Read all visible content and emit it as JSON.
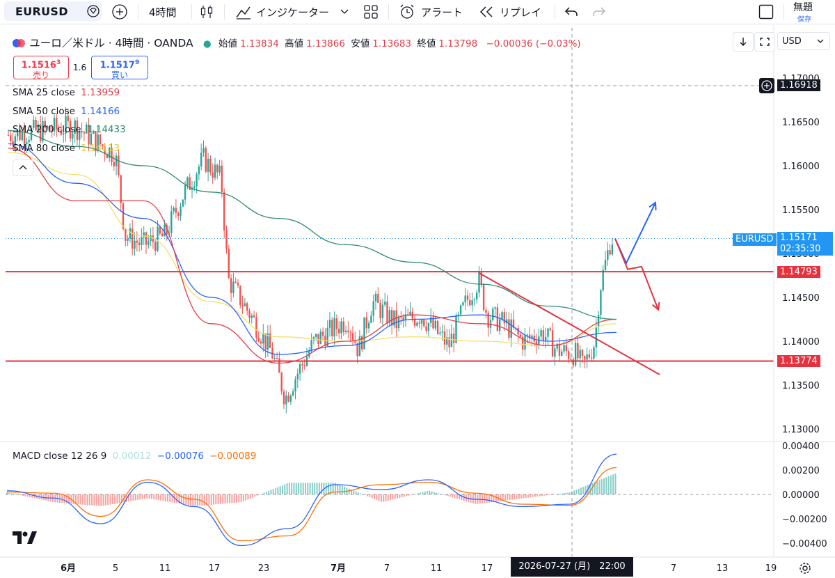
{
  "toolbar": {
    "symbol": "EURUSD",
    "interval": "4時間",
    "indicators": "インジケーター",
    "alert": "アラート",
    "replay": "リプレイ",
    "layout_name": "無題",
    "save": "保存"
  },
  "header": {
    "title": "ユーロ／米ドル · 4時間 · OANDA",
    "o_label": "始値",
    "o_val": "1.13834",
    "h_label": "高値",
    "h_val": "1.13866",
    "l_label": "安値",
    "l_val": "1.13683",
    "c_label": "終値",
    "c_val": "1.13798",
    "chg": "−0.00036 (−0.03%)",
    "currency": "USD"
  },
  "trade": {
    "sell_price_main": "1.1516",
    "sell_price_sup": "3",
    "sell_label": "売り",
    "spread": "1.6",
    "buy_price_main": "1.1517",
    "buy_price_sup": "9",
    "buy_label": "買い"
  },
  "indicators": [
    {
      "name": "SMA 25 close",
      "value": "1.13959",
      "color": "#e53b45"
    },
    {
      "name": "SMA 50 close",
      "value": "1.14166",
      "color": "#2962ff"
    },
    {
      "name": "SMA 200 close",
      "value": "1.14433",
      "color": "#2e8b6e"
    },
    {
      "name": "SMA 80 close",
      "value": "1.14113",
      "color": "#f5e06a"
    }
  ],
  "macd": {
    "label": "MACD close 12 26 9",
    "hist": "0.00012",
    "macd": "−0.00076",
    "signal": "−0.00089",
    "ticks": [
      "0.00400",
      "0.00200",
      "0.00000",
      "−0.00200",
      "−0.00400"
    ]
  },
  "price_axis": {
    "ticks": [
      "1.17000",
      "1.16500",
      "1.16000",
      "1.15500",
      "1.15000",
      "1.14500",
      "1.14000",
      "1.13500",
      "1.13000"
    ],
    "crosshair_price": "1.16918",
    "symbol_tag": "EURUSD",
    "last_price": "1.15171",
    "countdown": "02:35:30",
    "resistance": "1.14793",
    "support": "1.13774"
  },
  "time_axis": {
    "ticks": [
      {
        "label": "6月",
        "bold": true
      },
      {
        "label": "5",
        "bold": false
      },
      {
        "label": "11",
        "bold": false
      },
      {
        "label": "17",
        "bold": false
      },
      {
        "label": "23",
        "bold": false
      },
      {
        "label": "7月",
        "bold": true
      },
      {
        "label": "7",
        "bold": false
      },
      {
        "label": "11",
        "bold": false
      },
      {
        "label": "17",
        "bold": false
      },
      {
        "label": "7",
        "bold": false
      },
      {
        "label": "13",
        "bold": false
      },
      {
        "label": "19",
        "bold": false
      }
    ],
    "crosshair_date": "2026-07-27 (月)　22:00"
  },
  "colors": {
    "up": "#26a69a",
    "down": "#ef5350",
    "sma25": "#e53b45",
    "sma50": "#2962ff",
    "sma200": "#2e8b6e",
    "sma80": "#f5e06a",
    "hline": "#e5323f",
    "arrow_up": "#2962ff",
    "arrow_down": "#e5323f",
    "macd": "#2962ff",
    "signal": "#ff6d00"
  },
  "chart_data": {
    "type": "candlestick",
    "symbol": "EURUSD",
    "timeframe": "4時間",
    "ylim": [
      1.128,
      1.172
    ],
    "horizontal_lines": [
      1.14793,
      1.13774
    ],
    "trendline": [
      {
        "date": "Jul 15",
        "price": 1.1478
      },
      {
        "date": "Aug 3",
        "price": 1.1362
      }
    ],
    "projection_up": [
      1.1517,
      1.1489,
      1.1558
    ],
    "projection_down": [
      1.1517,
      1.1482,
      1.1485,
      1.1436
    ],
    "close_path": [
      {
        "date": "May 28",
        "price": 1.1635
      },
      {
        "date": "Jun 2",
        "price": 1.1645
      },
      {
        "date": "Jun 5",
        "price": 1.1612
      },
      {
        "date": "Jun 6",
        "price": 1.152
      },
      {
        "date": "Jun 9",
        "price": 1.151
      },
      {
        "date": "Jun 11",
        "price": 1.152
      },
      {
        "date": "Jun 13",
        "price": 1.1565
      },
      {
        "date": "Jun 16",
        "price": 1.1608
      },
      {
        "date": "Jun 18",
        "price": 1.1585
      },
      {
        "date": "Jun 19",
        "price": 1.147
      },
      {
        "date": "Jun 22",
        "price": 1.143
      },
      {
        "date": "Jun 24",
        "price": 1.1385
      },
      {
        "date": "Jun 26",
        "price": 1.1335
      },
      {
        "date": "Jun 27",
        "price": 1.136
      },
      {
        "date": "Jun 30",
        "price": 1.14
      },
      {
        "date": "Jul 2",
        "price": 1.1425
      },
      {
        "date": "Jul 3",
        "price": 1.139
      },
      {
        "date": "Jul 5",
        "price": 1.1445
      },
      {
        "date": "Jul 8",
        "price": 1.142
      },
      {
        "date": "Jul 10",
        "price": 1.143
      },
      {
        "date": "Jul 12",
        "price": 1.1395
      },
      {
        "date": "Jul 14",
        "price": 1.1445
      },
      {
        "date": "Jul 15",
        "price": 1.147
      },
      {
        "date": "Jul 17",
        "price": 1.143
      },
      {
        "date": "Jul 20",
        "price": 1.142
      },
      {
        "date": "Jul 22",
        "price": 1.14
      },
      {
        "date": "Jul 24",
        "price": 1.141
      },
      {
        "date": "Jul 26",
        "price": 1.139
      },
      {
        "date": "Jul 28",
        "price": 1.1385
      },
      {
        "date": "Jul 29",
        "price": 1.137
      },
      {
        "date": "Jul 30",
        "price": 1.14
      },
      {
        "date": "Jul 31",
        "price": 1.146
      },
      {
        "date": "Aug 1",
        "price": 1.1517
      }
    ],
    "sma200": [
      1.164,
      1.1622,
      1.16,
      1.157,
      1.154,
      1.151,
      1.149,
      1.1465,
      1.144,
      1.1425
    ],
    "sma80": [
      1.1615,
      1.159,
      1.152,
      1.1445,
      1.1405,
      1.14,
      1.1405,
      1.14,
      1.1395,
      1.142
    ],
    "sma50": [
      1.1625,
      1.158,
      1.154,
      1.145,
      1.1385,
      1.1395,
      1.1425,
      1.143,
      1.14,
      1.141
    ],
    "sma25": [
      1.162,
      1.156,
      1.156,
      1.142,
      1.1375,
      1.14,
      1.143,
      1.142,
      1.1395,
      1.1425
    ],
    "macd_line": [
      0.0003,
      -0.0003,
      -0.0024,
      0.001,
      -0.001,
      -0.0042,
      -0.0028,
      0.0008,
      0.0004,
      0.0012,
      -0.0004,
      -0.001,
      -0.0008,
      0.0033
    ],
    "signal_line": [
      0.0002,
      0.0001,
      -0.0018,
      0.0012,
      -0.0004,
      -0.0038,
      -0.0034,
      0.0002,
      0.0008,
      0.001,
      0.0001,
      -0.0008,
      -0.0009,
      0.0022
    ]
  }
}
